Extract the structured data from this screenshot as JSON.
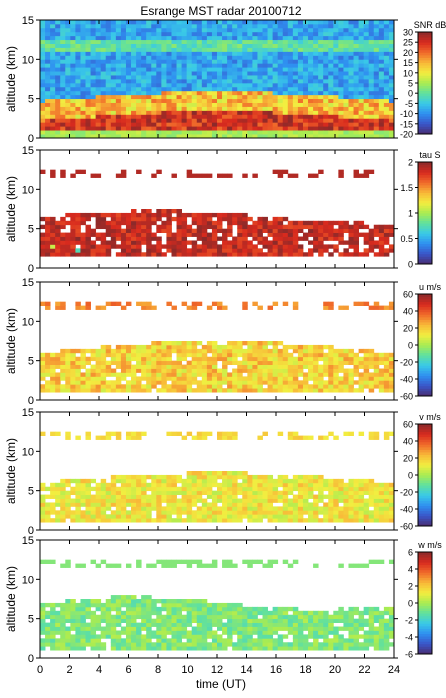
{
  "chart_data": {
    "type": "heatmap",
    "title": "Esrange MST radar 20100712",
    "xlabel": "time (UT)",
    "xlim": [
      0,
      24
    ],
    "x_ticks": [
      "0",
      "2",
      "4",
      "6",
      "8",
      "10",
      "12",
      "14",
      "16",
      "18",
      "20",
      "22",
      "24"
    ],
    "grid": false,
    "panels": [
      {
        "ylabel": "altitude (km)",
        "ylim": [
          0,
          15
        ],
        "y_ticks": [
          "0",
          "5",
          "10",
          "15"
        ],
        "colorbar_label": "SNR dB",
        "colorbar_range": [
          -20,
          30
        ],
        "colorbar_ticks": [
          "30",
          "25",
          "20",
          "15",
          "10",
          "5",
          "0",
          "-5",
          "-10",
          "-15",
          "-20"
        ],
        "colormap": [
          "#4a2c6e",
          "#3a55c8",
          "#2f8ff0",
          "#39c9e8",
          "#5fe0a0",
          "#a8ec52",
          "#f2ee40",
          "#f8b838",
          "#f06a2a",
          "#d82a1e",
          "#8a2a2a"
        ]
      },
      {
        "ylabel": "altitude (km)",
        "ylim": [
          0,
          15
        ],
        "y_ticks": [
          "0",
          "5",
          "10",
          "15"
        ],
        "colorbar_label": "tau S",
        "colorbar_range": [
          0,
          2
        ],
        "colorbar_ticks": [
          "2",
          "1.5",
          "1",
          "0.5",
          "0"
        ],
        "colormap": [
          "#4a2c6e",
          "#3a55c8",
          "#2f8ff0",
          "#39c9e8",
          "#5fe0a0",
          "#a8ec52",
          "#f2ee40",
          "#f8b838",
          "#f06a2a",
          "#d82a1e",
          "#8a2a2a"
        ]
      },
      {
        "ylabel": "altitude (km)",
        "ylim": [
          0,
          15
        ],
        "y_ticks": [
          "0",
          "5",
          "10",
          "15"
        ],
        "colorbar_label": "u m/s",
        "colorbar_range": [
          -60,
          60
        ],
        "colorbar_ticks": [
          "60",
          "40",
          "20",
          "0",
          "-20",
          "-40",
          "-60"
        ],
        "colormap": [
          "#4a2c6e",
          "#3a55c8",
          "#2f8ff0",
          "#39c9e8",
          "#5fe0a0",
          "#a8ec52",
          "#f2ee40",
          "#f8b838",
          "#f06a2a",
          "#d82a1e",
          "#8a2a2a"
        ]
      },
      {
        "ylabel": "altitude (km)",
        "ylim": [
          0,
          15
        ],
        "y_ticks": [
          "0",
          "5",
          "10",
          "15"
        ],
        "colorbar_label": "v m/s",
        "colorbar_range": [
          -60,
          60
        ],
        "colorbar_ticks": [
          "60",
          "40",
          "20",
          "0",
          "-20",
          "-40",
          "-60"
        ],
        "colormap": [
          "#4a2c6e",
          "#3a55c8",
          "#2f8ff0",
          "#39c9e8",
          "#5fe0a0",
          "#a8ec52",
          "#f2ee40",
          "#f8b838",
          "#f06a2a",
          "#d82a1e",
          "#8a2a2a"
        ]
      },
      {
        "ylabel": "altitude (km)",
        "ylim": [
          0,
          15
        ],
        "y_ticks": [
          "0",
          "5",
          "10",
          "15"
        ],
        "colorbar_label": "w m/s",
        "colorbar_range": [
          -6,
          6
        ],
        "colorbar_ticks": [
          "6",
          "4",
          "2",
          "0",
          "-2",
          "-4",
          "-6"
        ],
        "colormap": [
          "#4a2c6e",
          "#3a55c8",
          "#2f8ff0",
          "#39c9e8",
          "#5fe0a0",
          "#a8ec52",
          "#f2ee40",
          "#f8b838",
          "#f06a2a",
          "#d82a1e",
          "#8a2a2a"
        ]
      }
    ]
  }
}
